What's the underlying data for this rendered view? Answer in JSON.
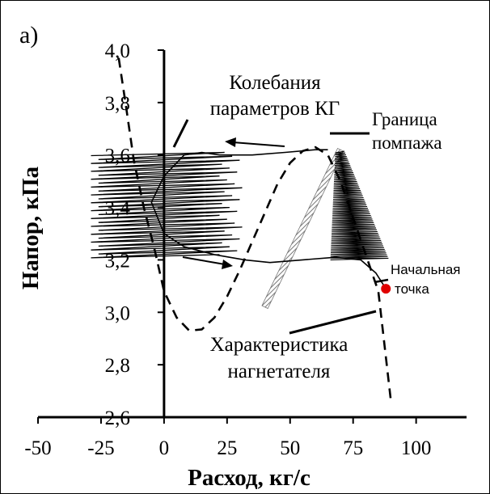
{
  "panel_label": "а)",
  "chart_data": {
    "type": "line",
    "xlabel": "Расход, кг/с",
    "ylabel": "Напор, кПа",
    "xlim": [
      -50,
      120
    ],
    "ylim": [
      2.6,
      4.0
    ],
    "x_ticks": [
      "-50",
      "-25",
      "0",
      "25",
      "50",
      "75",
      "100"
    ],
    "x_tick_values": [
      -50,
      -25,
      0,
      25,
      50,
      75,
      100
    ],
    "y_ticks": [
      "2,6",
      "2,8",
      "3,0",
      "3,2",
      "3,4",
      "3,6",
      "3,8",
      "4,0"
    ],
    "y_tick_values": [
      2.6,
      2.8,
      3.0,
      3.2,
      3.4,
      3.6,
      3.8,
      4.0
    ],
    "grid": false,
    "legend": "none",
    "series": [
      {
        "style": "dashed",
        "x": [
          -18,
          -15,
          -12,
          -8,
          -4,
          0,
          5,
          10,
          15,
          20,
          25,
          30,
          35,
          40,
          45,
          50,
          55,
          60,
          65,
          70,
          75,
          80,
          85,
          90
        ],
        "y": [
          3.97,
          3.78,
          3.58,
          3.4,
          3.25,
          3.08,
          2.98,
          2.93,
          2.935,
          2.98,
          3.06,
          3.16,
          3.27,
          3.38,
          3.49,
          3.57,
          3.615,
          3.63,
          3.6,
          3.5,
          3.36,
          3.22,
          3.08,
          2.66
        ]
      },
      {
        "style": "solid",
        "x": [
          88,
          84,
          78,
          68,
          55,
          42,
          32,
          20,
          8,
          0,
          -5,
          0,
          8,
          15,
          22,
          35,
          48,
          60,
          65
        ],
        "y": [
          3.09,
          3.15,
          3.2,
          3.21,
          3.2,
          3.19,
          3.2,
          3.22,
          3.25,
          3.3,
          3.42,
          3.52,
          3.6,
          3.61,
          3.6,
          3.6,
          3.61,
          3.62,
          3.62
        ]
      }
    ],
    "surge_line": {
      "x": [
        40,
        70
      ],
      "y": [
        3.02,
        3.62
      ]
    },
    "start_point": {
      "x": 88,
      "y": 3.09,
      "color": "#e00000"
    },
    "annotations": [
      {
        "text": "Колебания параметров КГ",
        "target": [
          5,
          3.6
        ]
      },
      {
        "text": "Граница помпажа",
        "target": [
          68,
          3.61
        ]
      },
      {
        "text": "Начальная точка",
        "target": [
          89,
          3.09
        ]
      },
      {
        "text": "Характеристика нагнетателя",
        "target": [
          90,
          2.98
        ]
      }
    ]
  },
  "annotation_text": {
    "oscillations_line1": "Колебания",
    "oscillations_line2": "параметров КГ",
    "surge_line1": "Граница",
    "surge_line2": "помпажа",
    "start_line1": "Начальная",
    "start_line2": "точка",
    "curve_line1": "Характеристика",
    "curve_line2": "нагнетателя"
  },
  "colors": {
    "axis": "#000000",
    "hatch": "#777777",
    "start_point": "#e00000"
  }
}
